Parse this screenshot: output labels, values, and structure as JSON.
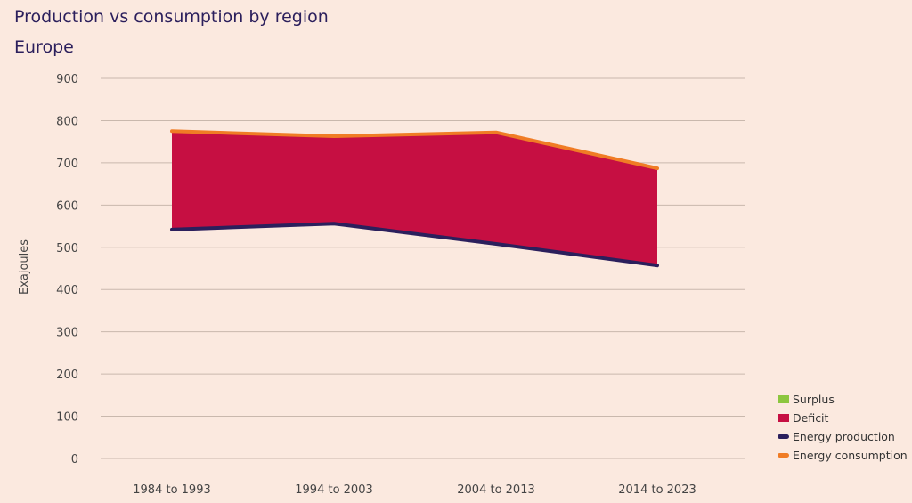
{
  "title": "Production vs consumption by region",
  "subtitle": "Europe",
  "colors": {
    "background": "#fbe9df",
    "surplus": "#8cc63f",
    "deficit": "#c60f42",
    "production": "#2b1f5c",
    "consumption": "#f07c25",
    "grid": "#c9b8ad"
  },
  "legend": [
    {
      "label": "Surplus",
      "kind": "box",
      "color_key": "surplus"
    },
    {
      "label": "Deficit",
      "kind": "box",
      "color_key": "deficit"
    },
    {
      "label": "Energy production",
      "kind": "line",
      "color_key": "production"
    },
    {
      "label": "Energy consumption",
      "kind": "line",
      "color_key": "consumption"
    }
  ],
  "chart_data": {
    "type": "area",
    "title": "Production vs consumption by region",
    "subtitle": "Europe",
    "xlabel": "",
    "ylabel": "Exajoules",
    "categories": [
      "1984 to 1993",
      "1994 to 2003",
      "2004 to 2013",
      "2014 to 2023"
    ],
    "ylim": [
      0,
      900
    ],
    "yticks": [
      0,
      100,
      200,
      300,
      400,
      500,
      600,
      700,
      800,
      900
    ],
    "grid": true,
    "legend_position": "bottom-right",
    "series": [
      {
        "name": "Energy production",
        "values": [
          542,
          556,
          508,
          457
        ]
      },
      {
        "name": "Energy consumption",
        "values": [
          775,
          763,
          772,
          687
        ]
      }
    ],
    "areas": [
      "Surplus",
      "Deficit"
    ]
  }
}
